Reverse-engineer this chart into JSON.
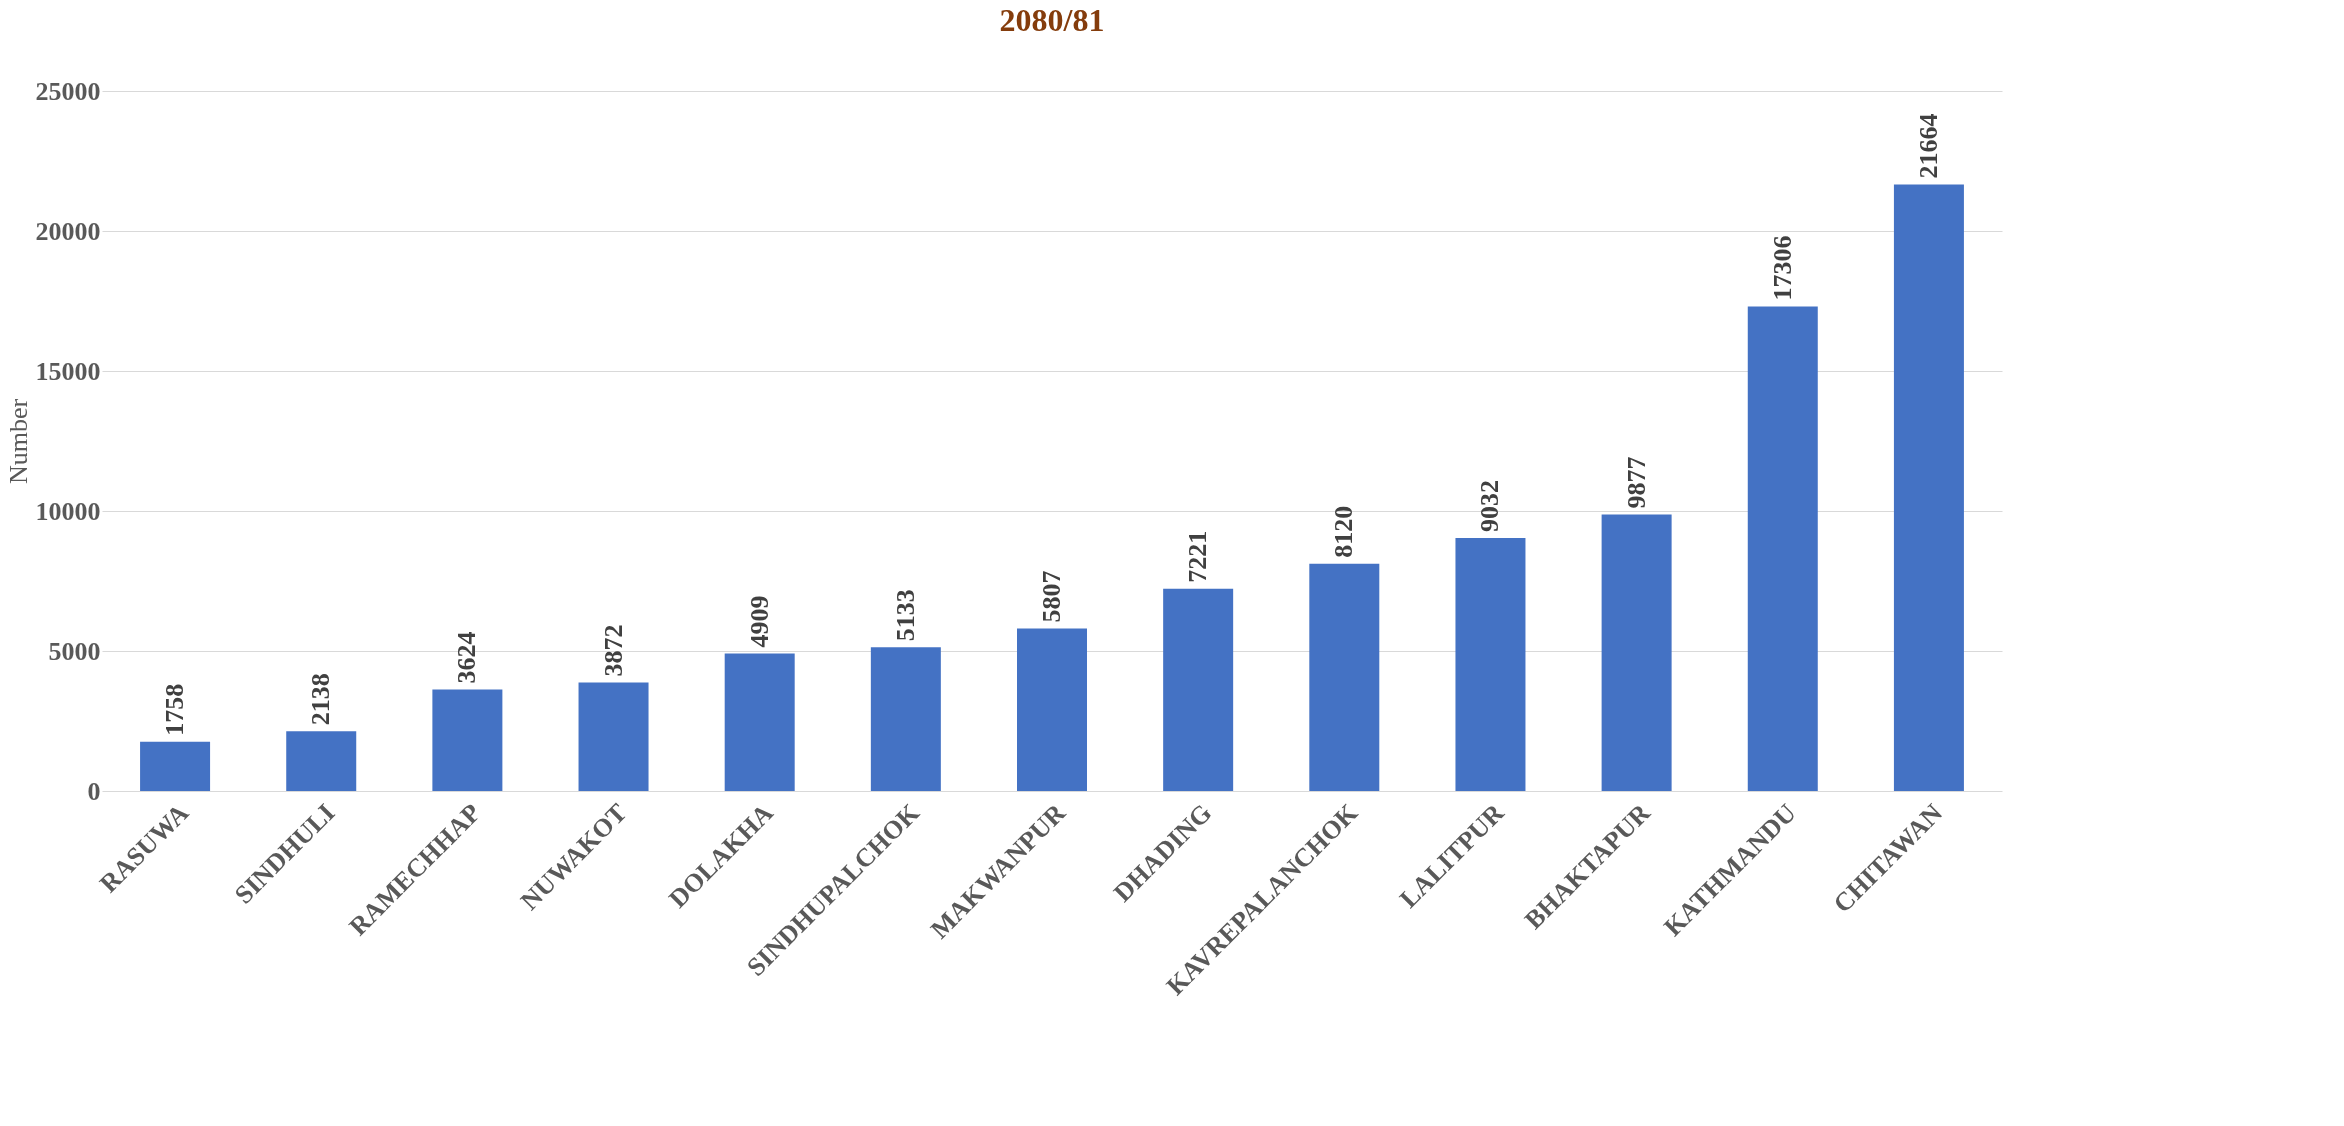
{
  "chart_data": {
    "type": "bar",
    "title": "2080/81",
    "ylabel": "Number",
    "categories": [
      "RASUWA",
      "SINDHULI",
      "RAMECHHAP",
      "NUWAKOT",
      "DOLAKHA",
      "SINDHUPALCHOK",
      "MAKWANPUR",
      "DHADING",
      "KAVREPALANCHOK",
      "LALITPUR",
      "BHAKTAPUR",
      "KATHMANDU",
      "CHITAWAN"
    ],
    "values": [
      1758,
      2138,
      3624,
      3872,
      4909,
      5133,
      5807,
      7221,
      8120,
      9032,
      9877,
      17306,
      21664
    ],
    "color": "#4472c4",
    "ylim": [
      0,
      25000
    ],
    "yticks": [
      0,
      5000,
      10000,
      15000,
      20000,
      25000
    ],
    "grid": "y",
    "data_labels": true
  }
}
